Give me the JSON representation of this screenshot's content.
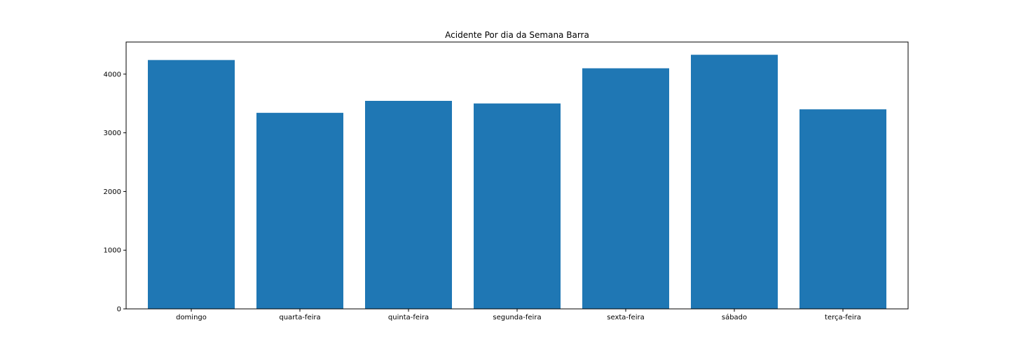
{
  "chart_data": {
    "type": "bar",
    "title": "Acidente Por dia da Semana Barra",
    "xlabel": "",
    "ylabel": "",
    "categories": [
      "domingo",
      "quarta-feira",
      "quinta-feira",
      "segunda-feira",
      "sexta-feira",
      "sábado",
      "terça-feira"
    ],
    "values": [
      4240,
      3340,
      3545,
      3500,
      4100,
      4330,
      3400
    ],
    "ylim": [
      0,
      4547
    ],
    "yticks": [
      0,
      1000,
      2000,
      3000,
      4000
    ],
    "ytick_labels": [
      "0",
      "1000",
      "2000",
      "3000",
      "4000"
    ],
    "bar_color": "#1f77b4",
    "grid": false,
    "legend": "none"
  }
}
